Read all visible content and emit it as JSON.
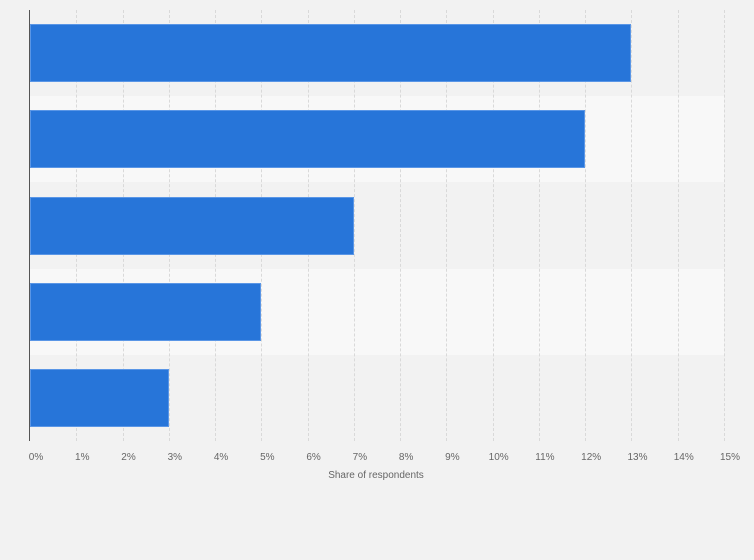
{
  "chart_data": {
    "type": "bar",
    "orientation": "horizontal",
    "title": "",
    "categories": [
      "",
      "",
      "",
      "",
      ""
    ],
    "values": [
      13,
      12,
      7,
      5,
      3
    ],
    "value_unit": "%",
    "xlabel": "Share of respondents",
    "ylabel": "",
    "xlim": [
      0,
      15
    ],
    "x_ticks": [
      "0%",
      "1%",
      "2%",
      "3%",
      "4%",
      "5%",
      "6%",
      "7%",
      "8%",
      "9%",
      "10%",
      "11%",
      "12%",
      "13%",
      "14%",
      "15%"
    ],
    "grid": true,
    "legend": null,
    "bar_color": "#2775d9"
  },
  "axis": {
    "x_title": "Share of respondents",
    "ticks": [
      "0%",
      "1%",
      "2%",
      "3%",
      "4%",
      "5%",
      "6%",
      "7%",
      "8%",
      "9%",
      "10%",
      "11%",
      "12%",
      "13%",
      "14%",
      "15%"
    ]
  }
}
